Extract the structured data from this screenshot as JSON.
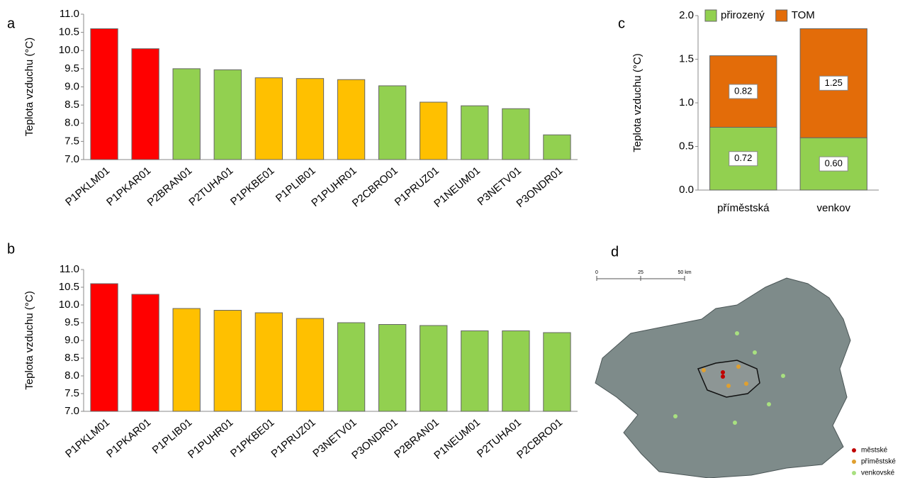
{
  "chart_data": [
    {
      "type": "bar",
      "label": "a",
      "ylabel": "Teplota vzduchu (°C)",
      "categories": [
        "P1PKLM01",
        "P1PKAR01",
        "P2BRAN01",
        "P2TUHA01",
        "P1PKBE01",
        "P1PLIB01",
        "P1PUHR01",
        "P2CBRO01",
        "P1PRUZ01",
        "P1NEUM01",
        "P3NETV01",
        "P3ONDR01"
      ],
      "values": [
        10.6,
        10.05,
        9.5,
        9.47,
        9.25,
        9.23,
        9.2,
        9.03,
        8.58,
        8.48,
        8.4,
        7.68
      ],
      "colors": [
        "#ff0000",
        "#ff0000",
        "#92d050",
        "#92d050",
        "#ffc000",
        "#ffc000",
        "#ffc000",
        "#92d050",
        "#ffc000",
        "#92d050",
        "#92d050",
        "#92d050"
      ],
      "ylim": [
        7,
        11
      ],
      "yticks": [
        {
          "value": 7,
          "label": "7.0"
        },
        {
          "value": 7.5,
          "label": "7.5"
        },
        {
          "value": 8,
          "label": "8.0"
        },
        {
          "value": 8.5,
          "label": "8.5"
        },
        {
          "value": 9,
          "label": "9.0"
        },
        {
          "value": 9.5,
          "label": "9.5"
        },
        {
          "value": 10,
          "label": "10.0"
        },
        {
          "value": 10.5,
          "label": "10.5"
        },
        {
          "value": 11,
          "label": "11.0"
        }
      ]
    },
    {
      "type": "bar",
      "label": "b",
      "ylabel": "Teplota vzduchu (°C)",
      "categories": [
        "P1PKLM01",
        "P1PKAR01",
        "P1PLIB01",
        "P1PUHR01",
        "P1PKBE01",
        "P1PRUZ01",
        "P3NETV01",
        "P3ONDR01",
        "P2BRAN01",
        "P1NEUM01",
        "P2TUHA01",
        "P2CBRO01"
      ],
      "values": [
        10.6,
        10.3,
        9.9,
        9.85,
        9.78,
        9.62,
        9.5,
        9.45,
        9.42,
        9.27,
        9.27,
        9.22
      ],
      "colors": [
        "#ff0000",
        "#ff0000",
        "#ffc000",
        "#ffc000",
        "#ffc000",
        "#ffc000",
        "#92d050",
        "#92d050",
        "#92d050",
        "#92d050",
        "#92d050",
        "#92d050"
      ],
      "ylim": [
        7,
        11
      ],
      "yticks": [
        {
          "value": 7,
          "label": "7.0"
        },
        {
          "value": 7.5,
          "label": "7.5"
        },
        {
          "value": 8,
          "label": "8.0"
        },
        {
          "value": 8.5,
          "label": "8.5"
        },
        {
          "value": 9,
          "label": "9.0"
        },
        {
          "value": 9.5,
          "label": "9.5"
        },
        {
          "value": 10,
          "label": "10.0"
        },
        {
          "value": 10.5,
          "label": "10.5"
        },
        {
          "value": 11,
          "label": "11.0"
        }
      ]
    },
    {
      "type": "stacked_bar",
      "label": "c",
      "ylabel": "Teplota vzduchu (°C)",
      "categories": [
        "příměstská",
        "venkov"
      ],
      "series": [
        {
          "name": "přirozený",
          "color": "#92d050",
          "values": [
            0.72,
            0.6
          ],
          "value_labels": [
            "0.72",
            "0.60"
          ]
        },
        {
          "name": "TOM",
          "color": "#e36c09",
          "values": [
            0.82,
            1.25
          ],
          "value_labels": [
            "0.82",
            "1.25"
          ]
        }
      ],
      "ylim": [
        0,
        2
      ],
      "yticks": [
        {
          "value": 0,
          "label": "0.0"
        },
        {
          "value": 0.5,
          "label": "0.5"
        },
        {
          "value": 1,
          "label": "1.0"
        },
        {
          "value": 1.5,
          "label": "1.5"
        },
        {
          "value": 2,
          "label": "2.0"
        }
      ],
      "legend": "top"
    }
  ],
  "map": {
    "label": "d",
    "scale_labels": [
      "0",
      "25",
      "50 km"
    ],
    "legend": [
      "městské",
      "příměstské",
      "venkovské"
    ]
  }
}
